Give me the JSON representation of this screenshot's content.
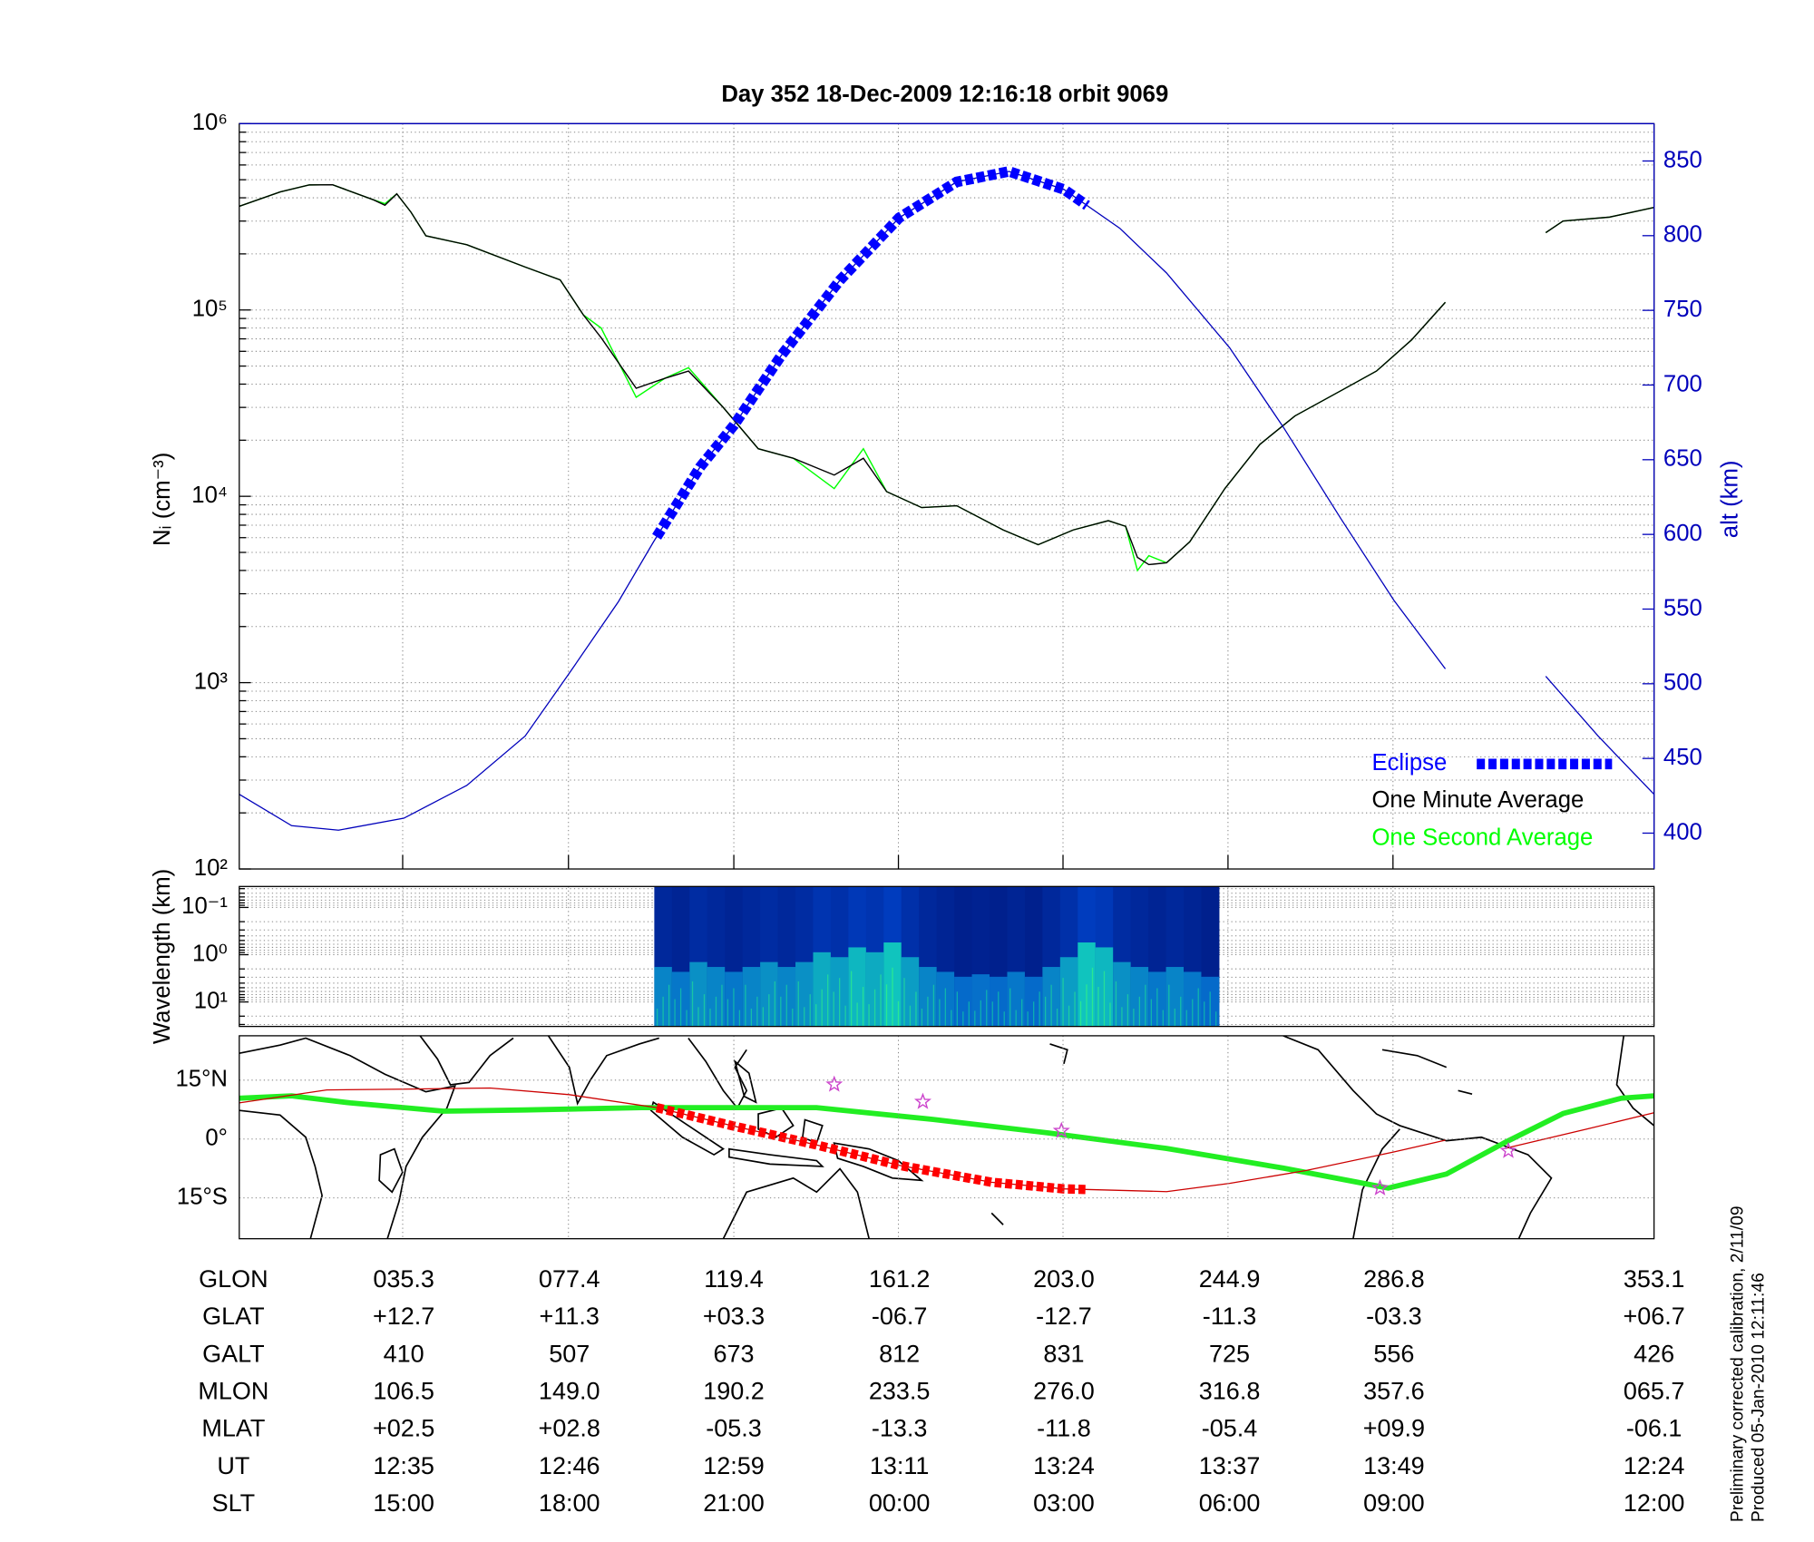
{
  "chart_data": [
    {
      "type": "line",
      "title": "Day 352  18-Dec-2009 12:16:18   orbit 9069",
      "ylabel": "Nᵢ (cm⁻³)",
      "y2label": "alt (km)",
      "log_y": true,
      "grid": true,
      "legend": "lower right",
      "xlim": [
        -6.2,
        353.1
      ],
      "xticks": [
        35.3,
        77.4,
        119.4,
        161.2,
        203.0,
        244.9,
        286.8
      ],
      "ylim": [
        100,
        1000000
      ],
      "yticks": [
        {
          "value": 100,
          "label": "10²"
        },
        {
          "value": 1000,
          "label": "10³"
        },
        {
          "value": 10000,
          "label": "10⁴"
        },
        {
          "value": 100000,
          "label": "10⁵"
        },
        {
          "value": 1000000,
          "label": "10⁶"
        }
      ],
      "y2lim": [
        376,
        875
      ],
      "y2ticks": [
        400,
        450,
        500,
        550,
        600,
        650,
        700,
        750,
        800,
        850
      ],
      "x": [
        -6.2,
        4.2,
        11.6,
        17.5,
        27.9,
        30.8,
        33.8,
        37.4,
        41.2,
        51.6,
        66.4,
        75.3,
        81.2,
        85.7,
        94.6,
        101.9,
        107.9,
        116.7,
        125.6,
        134.5,
        144.9,
        152.3,
        158.2,
        167.1,
        176.0,
        187.8,
        196.7,
        205.6,
        214.5,
        218.9,
        221.9,
        224.8,
        229.3,
        235.2,
        244.1,
        253.0,
        261.9,
        273.7,
        282.6,
        291.5,
        300.1,
        312.0,
        325.6,
        330.0,
        341.8,
        353.1
      ],
      "series": [
        {
          "name": "One Minute Average",
          "color": "#000000",
          "values": [
            360000,
            430000,
            469000,
            470000,
            390000,
            365000,
            420000,
            335000,
            250000,
            224000,
            170000,
            145000,
            94000,
            71000,
            38000,
            43000,
            47000,
            30000,
            18000,
            16000,
            13000,
            16000,
            10600,
            8700,
            8900,
            6600,
            5500,
            6600,
            7400,
            6900,
            4700,
            4300,
            4400,
            5700,
            11000,
            19000,
            27000,
            37000,
            47000,
            69000,
            110000,
            null,
            260000,
            300000,
            315000,
            355000
          ]
        },
        {
          "name": "One Second Average",
          "color": "#00ff00",
          "values": [
            360000,
            430000,
            469000,
            470000,
            390000,
            372000,
            420000,
            335000,
            250000,
            224000,
            170000,
            145000,
            94000,
            80000,
            34000,
            43000,
            49000,
            30000,
            18000,
            16000,
            11000,
            18000,
            10600,
            8700,
            8900,
            6600,
            5500,
            6600,
            7400,
            6900,
            4000,
            4800,
            4400,
            5700,
            11000,
            19000,
            27000,
            37000,
            47000,
            69000,
            110000,
            null,
            260000,
            300000,
            315000,
            355000
          ]
        }
      ],
      "altitude": {
        "axis": "y2",
        "color": "#0000bb",
        "x": [
          -6.2,
          7.1,
          19.0,
          35.6,
          51.6,
          66.4,
          77.6,
          90.1,
          99.0,
          110.8,
          119.4,
          131.5,
          146.3,
          161.4,
          176.0,
          189.3,
          203.2,
          217.4,
          229.3,
          245.3,
          258.9,
          273.7,
          287.0,
          300.1,
          312.0,
          325.6,
          338.9,
          353.1
        ],
        "values": [
          426,
          405,
          402,
          410,
          432,
          465,
          507,
          555,
          595,
          645,
          673,
          720,
          770,
          812,
          836,
          843,
          831,
          805,
          775,
          725,
          672,
          610,
          556,
          510,
          null,
          505,
          465,
          426
        ]
      },
      "eclipse": {
        "name": "Eclipse",
        "color": "#0000ff",
        "xrange": [
          99.8,
          209.1
        ]
      }
    },
    {
      "type": "spectrogram",
      "ylabel": "Wavelength (km)",
      "log_y": true,
      "ylim": [
        33,
        0.036
      ],
      "yticks": [
        {
          "value": 0.1,
          "label": "10⁻¹"
        },
        {
          "value": 1,
          "label": "10⁰"
        },
        {
          "value": 10,
          "label": "10¹"
        }
      ],
      "xlim": [
        -6.2,
        353.1
      ],
      "xticks": [
        35.3,
        77.4,
        119.4,
        161.2,
        203.0,
        244.9,
        286.8
      ],
      "xrange": [
        99.2,
        242.6
      ],
      "intensity": [
        0.5,
        0.4,
        0.6,
        0.5,
        0.4,
        0.5,
        0.6,
        0.5,
        0.6,
        0.8,
        0.7,
        0.9,
        0.8,
        1.0,
        0.7,
        0.5,
        0.4,
        0.3,
        0.35,
        0.3,
        0.4,
        0.3,
        0.5,
        0.7,
        1.0,
        0.9,
        0.6,
        0.5,
        0.4,
        0.5,
        0.4,
        0.3
      ]
    },
    {
      "type": "map",
      "ylim": [
        -25.4,
        26.3
      ],
      "yticks": [
        {
          "value": 15,
          "label": "15°N"
        },
        {
          "value": 0,
          "label": "0°"
        },
        {
          "value": -15,
          "label": "15°S"
        }
      ],
      "xlim": [
        -6.2,
        353.1
      ],
      "xticks": [
        35.3,
        77.4,
        119.4,
        161.2,
        203.0,
        244.9,
        286.8
      ],
      "magnetic_equator": {
        "color": "#22ee22",
        "x": [
          -6.2,
          7.1,
          22.0,
          45.6,
          66.4,
          96.0,
          140.4,
          170.0,
          199.7,
          229.3,
          258.9,
          285.6,
          300.4,
          315.2,
          330.0,
          344.8,
          353.1
        ],
        "values": [
          10.4,
          11,
          9.2,
          7.1,
          7.4,
          8,
          8,
          5,
          1.5,
          -2.4,
          -7.4,
          -12.5,
          -8.9,
          -0.9,
          6.5,
          10.4,
          11
        ]
      },
      "track": {
        "color": "#cc0000",
        "x": [
          -6.2,
          16.0,
          35.6,
          57.5,
          77.6,
          99.8,
          119.4,
          140.4,
          161.4,
          184.8,
          203.2,
          229.3,
          245.3,
          264.8,
          287.0,
          300.1,
          312.0,
          315.2,
          335.9,
          353.1
        ],
        "values": [
          9.2,
          12.5,
          12.7,
          13.0,
          11.3,
          8.0,
          3.3,
          -1.5,
          -6.7,
          -11.0,
          -12.7,
          -13.4,
          -11.3,
          -8.0,
          -3.3,
          -0.3,
          null,
          -2.4,
          2.5,
          6.7
        ]
      },
      "eclipse": {
        "color": "#ff0000",
        "xrange": [
          99.8,
          209.1
        ]
      },
      "stars": {
        "color": "#cc44cc",
        "x": [
          144.9,
          167.4,
          202.6,
          283.5,
          316.1
        ],
        "values": [
          13.9,
          9.5,
          2.1,
          -12.5,
          -3.0
        ]
      }
    }
  ],
  "table": {
    "rows": [
      [
        "GLON",
        "035.3",
        "077.4",
        "119.4",
        "161.2",
        "203.0",
        "244.9",
        "286.8",
        "353.1"
      ],
      [
        "GLAT",
        "+12.7",
        "+11.3",
        "+03.3",
        "-06.7",
        "-12.7",
        "-11.3",
        "-03.3",
        "+06.7"
      ],
      [
        "GALT",
        "410",
        "507",
        "673",
        "812",
        "831",
        "725",
        "556",
        "426"
      ],
      [
        "MLON",
        "106.5",
        "149.0",
        "190.2",
        "233.5",
        "276.0",
        "316.8",
        "357.6",
        "065.7"
      ],
      [
        "MLAT",
        "+02.5",
        "+02.8",
        "-05.3",
        "-13.3",
        "-11.8",
        "-05.4",
        "+09.9",
        "-06.1"
      ],
      [
        "UT",
        "12:35",
        "12:46",
        "12:59",
        "13:11",
        "13:24",
        "13:37",
        "13:49",
        "12:24"
      ],
      [
        "SLT",
        "15:00",
        "18:00",
        "21:00",
        "00:00",
        "03:00",
        "06:00",
        "09:00",
        "12:00"
      ]
    ]
  },
  "notes": [
    "Preliminary corrected calibration, 2/11/09",
    "Produced 05-Jan-2010 12:11:46"
  ]
}
